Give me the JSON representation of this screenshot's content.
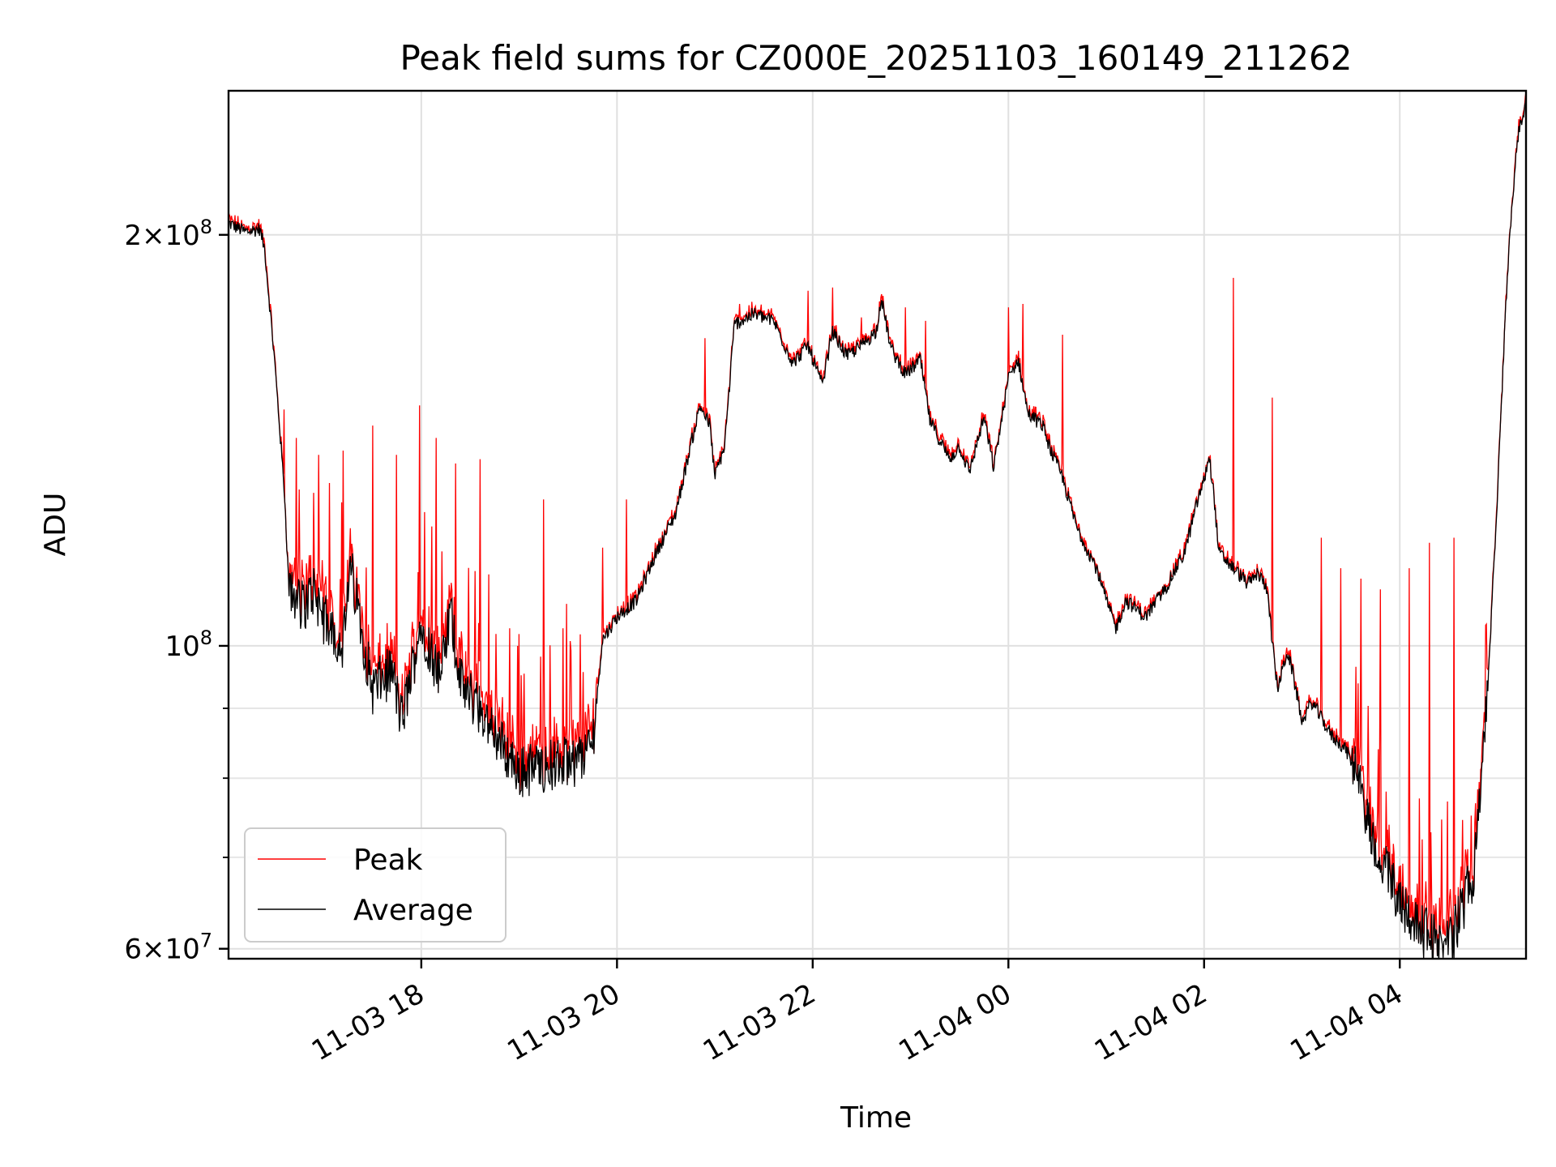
{
  "chart_data": {
    "type": "line",
    "title": "Peak field sums for CZ000E_20251103_160149_211262",
    "xlabel": "Time",
    "ylabel": "ADU",
    "yscale": "log",
    "ylim": [
      59000000,
      255000000
    ],
    "xlim_hours": [
      16.03,
      29.29
    ],
    "grid": true,
    "legend_position": "lower-left",
    "x_ticks": [
      {
        "hour": 18,
        "label": "11-03 18"
      },
      {
        "hour": 20,
        "label": "11-03 20"
      },
      {
        "hour": 22,
        "label": "11-03 22"
      },
      {
        "hour": 24,
        "label": "11-04 00"
      },
      {
        "hour": 26,
        "label": "11-04 02"
      },
      {
        "hour": 28,
        "label": "11-04 04"
      }
    ],
    "y_major_ticks": [
      {
        "value": 60000000,
        "mantissa": "6",
        "exponent": "7"
      },
      {
        "value": 100000000,
        "mantissa": "",
        "exponent": "8"
      },
      {
        "value": 200000000,
        "mantissa": "2",
        "exponent": "8"
      }
    ],
    "y_minor_ticks": [
      70000000,
      80000000,
      90000000
    ],
    "series": [
      {
        "name": "Peak",
        "color": "#ff0000",
        "spikes": [
          [
            16.6,
            149000000.0
          ],
          [
            16.72,
            142000000.0
          ],
          [
            16.95,
            138000000.0
          ],
          [
            17.2,
            139000000.0
          ],
          [
            17.5,
            145000000.0
          ],
          [
            17.75,
            138000000.0
          ],
          [
            17.98,
            150000000.0
          ],
          [
            18.15,
            142000000.0
          ],
          [
            18.35,
            136000000.0
          ],
          [
            18.6,
            137000000.0
          ],
          [
            18.9,
            103000000.0
          ],
          [
            19.0,
            102000000.0
          ],
          [
            19.25,
            128000000.0
          ],
          [
            19.45,
            103000000.0
          ],
          [
            19.85,
            118000000.0
          ],
          [
            20.1,
            128000000.0
          ],
          [
            20.9,
            168000000.0
          ],
          [
            21.25,
            178000000.0
          ],
          [
            21.5,
            176000000.0
          ],
          [
            21.95,
            182000000.0
          ],
          [
            22.2,
            183000000.0
          ],
          [
            22.5,
            174000000.0
          ],
          [
            22.95,
            177000000.0
          ],
          [
            23.15,
            173000000.0
          ],
          [
            24.0,
            177000000.0
          ],
          [
            24.15,
            178000000.0
          ],
          [
            24.55,
            169000000.0
          ],
          [
            26.3,
            186000000.0
          ],
          [
            26.7,
            152000000.0
          ],
          [
            27.2,
            120000000.0
          ],
          [
            27.4,
            114000000.0
          ],
          [
            27.6,
            112000000.0
          ],
          [
            27.8,
            110000000.0
          ],
          [
            28.1,
            114000000.0
          ],
          [
            28.3,
            119000000.0
          ],
          [
            28.55,
            120000000.0
          ]
        ]
      },
      {
        "name": "Average",
        "color": "#000000",
        "points": [
          [
            16.03,
            204000000.0
          ],
          [
            16.2,
            201000000.0
          ],
          [
            16.35,
            202000000.0
          ],
          [
            16.4,
            195000000.0
          ],
          [
            16.5,
            162000000.0
          ],
          [
            16.6,
            130000000.0
          ],
          [
            16.65,
            109000000.0
          ],
          [
            16.8,
            107000000.0
          ],
          [
            16.9,
            110000000.0
          ],
          [
            17.0,
            105000000.0
          ],
          [
            17.2,
            100000000.0
          ],
          [
            17.28,
            114000000.0
          ],
          [
            17.4,
            102000000.0
          ],
          [
            17.5,
            93000000.0
          ],
          [
            17.7,
            96000000.0
          ],
          [
            17.8,
            88000000.0
          ],
          [
            18.0,
            104000000.0
          ],
          [
            18.1,
            99000000.0
          ],
          [
            18.2,
            95000000.0
          ],
          [
            18.3,
            106000000.0
          ],
          [
            18.4,
            94000000.0
          ],
          [
            18.6,
            90000000.0
          ],
          [
            18.8,
            85000000.0
          ],
          [
            19.0,
            81000000.0
          ],
          [
            19.2,
            81500000.0
          ],
          [
            19.4,
            82000000.0
          ],
          [
            19.6,
            82500000.0
          ],
          [
            19.75,
            85000000.0
          ],
          [
            19.85,
            101000000.0
          ],
          [
            20.0,
            105000000.0
          ],
          [
            20.2,
            108000000.0
          ],
          [
            20.4,
            117000000.0
          ],
          [
            20.6,
            125000000.0
          ],
          [
            20.75,
            140000000.0
          ],
          [
            20.85,
            150000000.0
          ],
          [
            20.95,
            145000000.0
          ],
          [
            21.0,
            133000000.0
          ],
          [
            21.1,
            140000000.0
          ],
          [
            21.2,
            172000000.0
          ],
          [
            21.4,
            175000000.0
          ],
          [
            21.6,
            173000000.0
          ],
          [
            21.8,
            161000000.0
          ],
          [
            21.95,
            166000000.0
          ],
          [
            22.1,
            155000000.0
          ],
          [
            22.2,
            170000000.0
          ],
          [
            22.35,
            163000000.0
          ],
          [
            22.5,
            166000000.0
          ],
          [
            22.65,
            170000000.0
          ],
          [
            22.7,
            180000000.0
          ],
          [
            22.8,
            165000000.0
          ],
          [
            22.95,
            158000000.0
          ],
          [
            23.1,
            162000000.0
          ],
          [
            23.2,
            146000000.0
          ],
          [
            23.4,
            137000000.0
          ],
          [
            23.5,
            140000000.0
          ],
          [
            23.6,
            134000000.0
          ],
          [
            23.75,
            147000000.0
          ],
          [
            23.85,
            135000000.0
          ],
          [
            24.0,
            157000000.0
          ],
          [
            24.1,
            162000000.0
          ],
          [
            24.2,
            148000000.0
          ],
          [
            24.35,
            145000000.0
          ],
          [
            24.45,
            138000000.0
          ],
          [
            24.55,
            133000000.0
          ],
          [
            24.7,
            122000000.0
          ],
          [
            24.9,
            114000000.0
          ],
          [
            25.0,
            108000000.0
          ],
          [
            25.1,
            103000000.0
          ],
          [
            25.2,
            108000000.0
          ],
          [
            25.4,
            105000000.0
          ],
          [
            25.6,
            110000000.0
          ],
          [
            25.8,
            117000000.0
          ],
          [
            25.95,
            129000000.0
          ],
          [
            26.0,
            132000000.0
          ],
          [
            26.05,
            138000000.0
          ],
          [
            26.1,
            129000000.0
          ],
          [
            26.15,
            117000000.0
          ],
          [
            26.3,
            114000000.0
          ],
          [
            26.45,
            111000000.0
          ],
          [
            26.55,
            113000000.0
          ],
          [
            26.65,
            110000000.0
          ],
          [
            26.7,
            100000000.0
          ],
          [
            26.75,
            93000000.0
          ],
          [
            26.85,
            99000000.0
          ],
          [
            26.9,
            96000000.0
          ],
          [
            26.95,
            92000000.0
          ],
          [
            27.0,
            88000000.0
          ],
          [
            27.1,
            91000000.0
          ],
          [
            27.3,
            86000000.0
          ],
          [
            27.45,
            84000000.0
          ],
          [
            27.6,
            79000000.0
          ],
          [
            27.7,
            73000000.0
          ],
          [
            27.9,
            67500000.0
          ],
          [
            28.05,
            64500000.0
          ],
          [
            28.2,
            62000000.0
          ],
          [
            28.35,
            61000000.0
          ],
          [
            28.45,
            60000000.0
          ],
          [
            28.55,
            61500000.0
          ],
          [
            28.75,
            68000000.0
          ],
          [
            28.9,
            93000000.0
          ],
          [
            29.0,
            130000000.0
          ],
          [
            29.1,
            188000000.0
          ],
          [
            29.2,
            235000000.0
          ],
          [
            29.29,
            250000000.0
          ]
        ]
      }
    ]
  }
}
